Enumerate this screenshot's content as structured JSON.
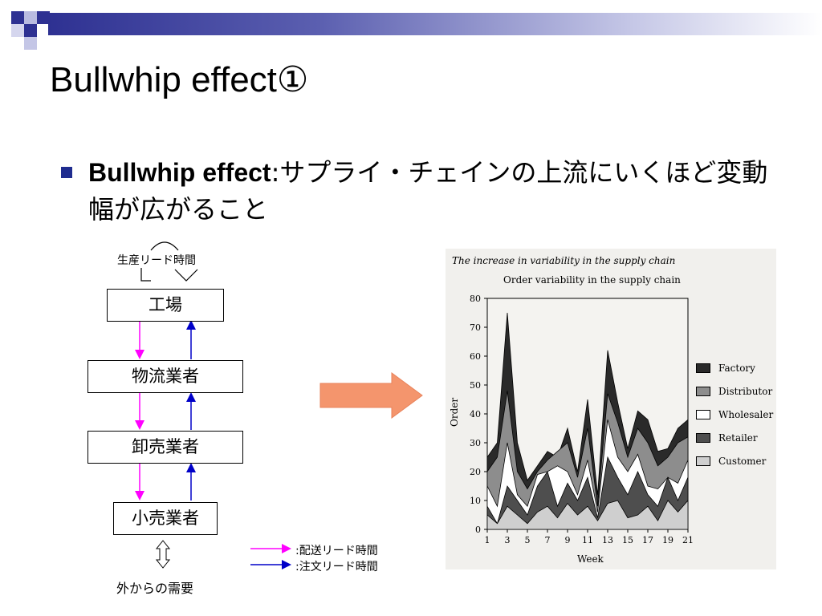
{
  "slide": {
    "title": "Bullwhip effect①",
    "bullet": {
      "term": "Bullwhip effect",
      "rest": ":サプライ・チェインの上流にいくほど変動幅が広がること"
    },
    "accent_color": "#1f2c8f",
    "arrow_color": "#f4956d"
  },
  "diagram": {
    "production_lead_time": "生産リード時間",
    "stages": [
      "工場",
      "物流業者",
      "卸売業者",
      "小売業者"
    ],
    "external_demand": "外からの需要",
    "legend": {
      "delivery": ":配送リード時間",
      "order": ":注文リード時間"
    },
    "colors": {
      "delivery": "#ff00ff",
      "order": "#0000c8"
    }
  },
  "chart_data": {
    "type": "area",
    "caption": "The increase in variability in the supply chain",
    "title": "Order variability in the supply chain",
    "xlabel": "Week",
    "ylabel": "Order",
    "xlim": [
      1,
      21
    ],
    "ylim": [
      0,
      80
    ],
    "x_ticks": [
      1,
      3,
      5,
      7,
      9,
      11,
      13,
      15,
      17,
      19,
      21
    ],
    "y_ticks": [
      0,
      10,
      20,
      30,
      40,
      50,
      60,
      70,
      80
    ],
    "legend_position": "right",
    "x": [
      1,
      2,
      3,
      4,
      5,
      6,
      7,
      8,
      9,
      10,
      11,
      12,
      13,
      14,
      15,
      16,
      17,
      18,
      19,
      20,
      21
    ],
    "series": [
      {
        "name": "Factory",
        "color": "#2a2a2a",
        "values": [
          25,
          30,
          75,
          30,
          17,
          22,
          27,
          25,
          35,
          20,
          45,
          12,
          62,
          44,
          28,
          41,
          38,
          27,
          28,
          35,
          38
        ]
      },
      {
        "name": "Distributor",
        "color": "#8d8d8d",
        "values": [
          20,
          25,
          48,
          20,
          14,
          20,
          24,
          27,
          30,
          18,
          35,
          8,
          47,
          37,
          25,
          35,
          30,
          22,
          25,
          30,
          32
        ]
      },
      {
        "name": "Wholesaler",
        "color": "#ffffff",
        "values": [
          15,
          8,
          30,
          12,
          8,
          19,
          20,
          22,
          20,
          12,
          24,
          6,
          38,
          25,
          20,
          26,
          15,
          14,
          18,
          16,
          24
        ]
      },
      {
        "name": "Retailer",
        "color": "#4e4e4e",
        "values": [
          8,
          2,
          15,
          10,
          5,
          15,
          20,
          8,
          16,
          10,
          18,
          4,
          25,
          18,
          12,
          20,
          12,
          8,
          18,
          10,
          18
        ]
      },
      {
        "name": "Customer",
        "color": "#cfcfcf",
        "values": [
          5,
          2,
          8,
          5,
          2,
          6,
          8,
          4,
          9,
          5,
          8,
          3,
          9,
          10,
          4,
          5,
          8,
          3,
          10,
          6,
          10
        ]
      }
    ]
  }
}
